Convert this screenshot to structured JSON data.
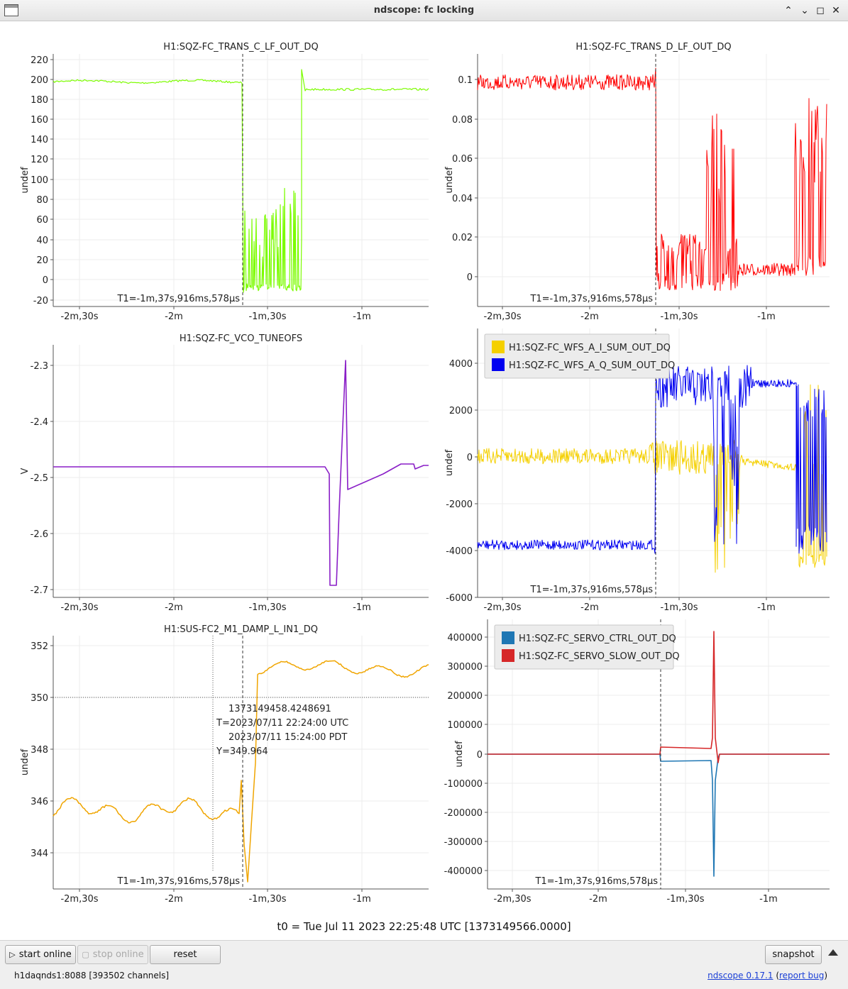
{
  "window": {
    "title": "ndscope: fc locking",
    "controls": [
      "shade-icon",
      "minimize-icon",
      "maximize-icon",
      "close-icon"
    ]
  },
  "cursor_label": "T1=-1m,37s,916ms,578µs",
  "time_ticks": [
    "-2m,30s",
    "-2m",
    "-1m,30s",
    "-1m"
  ],
  "plots": [
    {
      "id": "trans-c",
      "title": "H1:SQZ-FC_TRANS_C_LF_OUT_DQ",
      "ylabel": "undef",
      "yticks": [
        "220",
        "200",
        "180",
        "160",
        "140",
        "120",
        "100",
        "80",
        "60",
        "40",
        "20",
        "0",
        "-20"
      ],
      "legend": [],
      "cursor_label": "T1=-1m,37s,916ms,578µs"
    },
    {
      "id": "trans-d",
      "title": "H1:SQZ-FC_TRANS_D_LF_OUT_DQ",
      "ylabel": "undef",
      "yticks": [
        "0.1",
        "0.08",
        "0.06",
        "0.04",
        "0.02",
        "0"
      ],
      "legend": [],
      "cursor_label": "T1=-1m,37s,916ms,578µs"
    },
    {
      "id": "vco",
      "title": "H1:SQZ-FC_VCO_TUNEOFS",
      "ylabel": "V",
      "yticks": [
        "-2.3",
        "-2.4",
        "-2.5",
        "-2.6",
        "-2.7"
      ],
      "legend": [],
      "cursor_label": ""
    },
    {
      "id": "wfs",
      "title": "",
      "ylabel": "undef",
      "yticks": [
        "4000",
        "2000",
        "0",
        "-2000",
        "-4000",
        "-6000"
      ],
      "legend": [
        {
          "name": "H1:SQZ-FC_WFS_A_I_SUM_OUT_DQ",
          "color": "#f5d000"
        },
        {
          "name": "H1:SQZ-FC_WFS_A_Q_SUM_OUT_DQ",
          "color": "#0000f0"
        }
      ],
      "cursor_label": "T1=-1m,37s,916ms,578µs"
    },
    {
      "id": "sus",
      "title": "H1:SUS-FC2_M1_DAMP_L_IN1_DQ",
      "ylabel": "undef",
      "yticks": [
        "352",
        "350",
        "348",
        "346",
        "344"
      ],
      "legend": [],
      "cursor_label": "T1=-1m,37s,916ms,578µs",
      "crosshair": {
        "gps": "1373149458.4248691",
        "utc": "T=2023/07/11 22:24:00 UTC",
        "pdt": "2023/07/11 15:24:00 PDT",
        "y": "Y=349.964"
      }
    },
    {
      "id": "servo",
      "title": "",
      "ylabel": "undef",
      "yticks": [
        "400000",
        "300000",
        "200000",
        "100000",
        "0",
        "-100000",
        "-200000",
        "-300000",
        "-400000"
      ],
      "legend": [
        {
          "name": "H1:SQZ-FC_SERVO_CTRL_OUT_DQ",
          "color": "#1f77b4"
        },
        {
          "name": "H1:SQZ-FC_SERVO_SLOW_OUT_DQ",
          "color": "#d62728"
        }
      ],
      "cursor_label": "T1=-1m,37s,916ms,578µs"
    }
  ],
  "t0": "t0 = Tue Jul 11 2023 22:25:48 UTC [1373149566.0000]",
  "toolbar": {
    "start_online": "start online",
    "stop_online": "stop online",
    "reset": "reset",
    "snapshot": "snapshot"
  },
  "status": "h1daqnds1:8088  [393502 channels]",
  "version_link": "ndscope 0.17.1",
  "report_bug": "report bug",
  "colors": {
    "trans_c": "#7cfc00",
    "trans_d": "#ff0000",
    "vco": "#8a1fc7",
    "wfs_i": "#f5d000",
    "wfs_q": "#0000f0",
    "sus": "#f0a500",
    "servo_ctrl": "#1f77b4",
    "servo_slow": "#d62728"
  }
}
